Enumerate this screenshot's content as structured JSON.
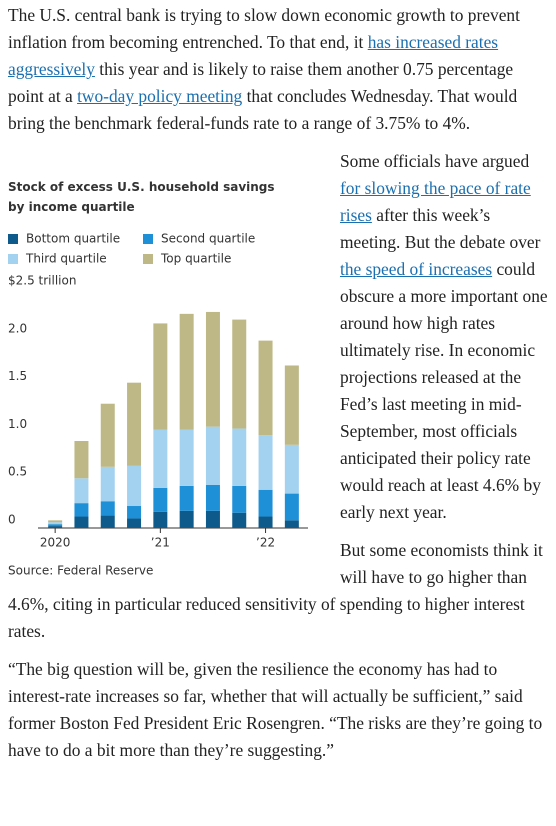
{
  "paragraphs": [
    {
      "parts": [
        {
          "text": "The U.S. central bank is trying to slow down economic growth to prevent inflation from becoming entrenched. To that end, it ",
          "link": false
        },
        {
          "text": "has increased rates aggressively",
          "link": true
        },
        {
          "text": " this year and is likely to raise them another 0.75 percentage point at a ",
          "link": false
        },
        {
          "text": "two-day policy meeting",
          "link": true
        },
        {
          "text": " that concludes Wednesday. That would bring the benchmark federal-funds rate to a range of 3.75% to 4%.",
          "link": false
        }
      ]
    },
    {
      "parts": [
        {
          "text": "Some officials have argued ",
          "link": false
        },
        {
          "text": "for slowing the pace of rate rises",
          "link": true
        },
        {
          "text": " after this week’s meeting. But the debate over ",
          "link": false
        },
        {
          "text": "the speed of increases",
          "link": true
        },
        {
          "text": " could obscure a more important one around how high rates ultimately rise. In economic projections released at the Fed’s last meeting in mid-September, most officials anticipated their policy rate would reach at least 4.6% by early next year.",
          "link": false
        }
      ]
    },
    {
      "parts": [
        {
          "text": "But some economists think it will have to go higher than 4.6%, citing in particular reduced sensitivity of spending to higher interest rates.",
          "link": false
        }
      ]
    },
    {
      "parts": [
        {
          "text": "“The big question will be, given the resilience the economy has had to interest-rate increases so far, whether that will actually be sufficient,” said former Boston Fed President Eric Rosengren. “The risks are they’re going to have to do a bit more than they’re suggesting.”",
          "link": false
        }
      ]
    }
  ],
  "chart_data": {
    "type": "stacked_bar",
    "title": "Stock of excess U.S. household savings by income quartile",
    "source": "Source: Federal Reserve",
    "categories": [
      "2020",
      null,
      null,
      null,
      "’21",
      null,
      null,
      null,
      "’22",
      null
    ],
    "series": [
      {
        "name": "Bottom quartile",
        "color": "#0e5a8a",
        "values": [
          0.02,
          0.12,
          0.13,
          0.1,
          0.17,
          0.18,
          0.18,
          0.16,
          0.12,
          0.08
        ]
      },
      {
        "name": "Second quartile",
        "color": "#1e90d8",
        "values": [
          0.02,
          0.14,
          0.15,
          0.13,
          0.25,
          0.26,
          0.27,
          0.28,
          0.28,
          0.28
        ]
      },
      {
        "name": "Third quartile",
        "color": "#a3d2f0",
        "values": [
          0.02,
          0.26,
          0.36,
          0.42,
          0.61,
          0.59,
          0.61,
          0.6,
          0.57,
          0.51
        ]
      },
      {
        "name": "Top quartile",
        "color": "#beb886",
        "values": [
          0.02,
          0.39,
          0.66,
          0.87,
          1.11,
          1.21,
          1.2,
          1.14,
          0.99,
          0.83
        ]
      }
    ],
    "ylim": [
      0,
      2.5
    ],
    "yticks": [
      0,
      0.5,
      {
        "value": 1,
        "label": "1.0"
      },
      1.5,
      {
        "value": 2,
        "label": "2.0"
      },
      {
        "value": 2.5,
        "label": "$2.5 trillion"
      }
    ],
    "grid": false
  }
}
